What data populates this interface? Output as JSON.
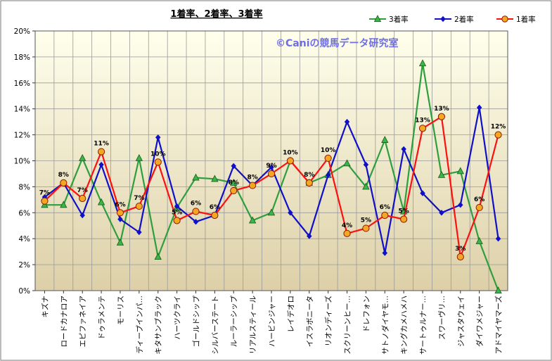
{
  "chart_data": {
    "type": "line",
    "title": "1着率、2着率、3着率",
    "watermark": "©Caniの競馬データ研究室",
    "categories": [
      "キズナ",
      "ロードカナロア",
      "エピファネイア",
      "ドゥラメンテ",
      "モーリス",
      "ディープインパ…",
      "キタサンブラック",
      "ハーツクライ",
      "ゴールドシップ",
      "シルバーステート",
      "ルーラーシップ",
      "リアルスティール",
      "ハービンジャー",
      "レイデオロ",
      "イスラボニータ",
      "リオンディーズ",
      "スクリーンヒー…",
      "ドレフォン",
      "サトノダイヤモ…",
      "キングカメハメハ",
      "サートゥルナー…",
      "スワーヴリ…",
      "ジャスタウェイ",
      "ダイワメジャー",
      "アドマイヤマーズ"
    ],
    "ylim": [
      0,
      20
    ],
    "yticks": [
      "0%",
      "2%",
      "4%",
      "6%",
      "8%",
      "10%",
      "12%",
      "14%",
      "16%",
      "18%",
      "20%"
    ],
    "grid": true,
    "legend_position": "top-right",
    "series": [
      {
        "name": "3着率",
        "color": "#2e9e3e",
        "marker": "triangle",
        "marker_fill": "#39b54a",
        "values": [
          6.6,
          6.6,
          10.2,
          6.8,
          3.7,
          10.2,
          2.6,
          6.4,
          8.7,
          8.6,
          8.3,
          5.4,
          6.0,
          10.0,
          8.3,
          8.9,
          9.8,
          8.0,
          11.6,
          6.1,
          17.5,
          8.9,
          9.2,
          3.8,
          0.0
        ]
      },
      {
        "name": "2着率",
        "color": "#1010c8",
        "marker": "diamond",
        "marker_fill": "#1010c8",
        "values": [
          7.2,
          8.3,
          5.8,
          9.7,
          5.5,
          4.5,
          11.8,
          6.5,
          5.3,
          5.8,
          9.6,
          8.1,
          9.5,
          6.0,
          4.2,
          8.9,
          13.0,
          9.7,
          2.9,
          10.9,
          7.5,
          6.0,
          6.6,
          14.1,
          4.0
        ]
      },
      {
        "name": "1着率",
        "color": "#ff1010",
        "marker": "circle",
        "marker_fill": "#f5a623",
        "values": [
          6.9,
          8.3,
          7.1,
          10.7,
          6.0,
          6.5,
          9.9,
          5.4,
          6.1,
          5.8,
          7.7,
          8.1,
          9.0,
          10.0,
          8.3,
          10.2,
          4.4,
          4.8,
          5.8,
          5.5,
          12.5,
          13.4,
          2.6,
          6.4,
          12.0
        ]
      }
    ],
    "data_labels": {
      "series": "1着率",
      "texts": [
        "7%",
        "8%",
        "7%",
        "11%",
        "6%",
        "7%",
        "10%",
        "5%",
        "6%",
        "6%",
        "8%",
        "8%",
        "9%",
        "10%",
        "8%",
        "10%",
        "4%",
        "5%",
        "6%",
        "5%",
        "13%",
        "13%",
        "3%",
        "6%",
        "12%"
      ]
    },
    "colors": {
      "background_top": "#ffffec",
      "background_bottom": "#ddd0a8",
      "frame_border": "#7a7a7a",
      "title_color": "#000000",
      "watermark_color": "#6e6ee6",
      "grid": "#9a9a9a"
    }
  }
}
